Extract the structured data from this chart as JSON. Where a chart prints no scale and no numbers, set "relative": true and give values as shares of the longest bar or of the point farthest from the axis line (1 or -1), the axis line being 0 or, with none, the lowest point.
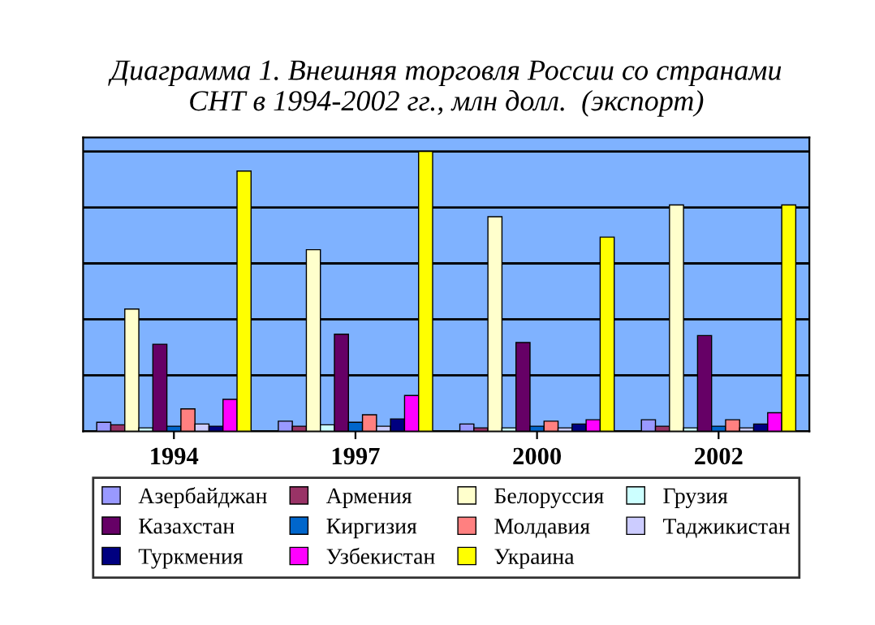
{
  "chart_data": {
    "type": "bar",
    "title": "Диаграмма 1. Внешняя торговля России со странами\nСНТ в 1994-2002 гг., млн долл.  (экспорт)",
    "relative": true,
    "grid": "y",
    "legend": "bottom",
    "categories": [
      "1994",
      "1997",
      "2000",
      "2002"
    ],
    "series": [
      {
        "name": "Азербайджан",
        "color": "#9999ff",
        "values": [
          0.032,
          0.036,
          0.026,
          0.041
        ]
      },
      {
        "name": "Армения",
        "color": "#993366",
        "values": [
          0.023,
          0.018,
          0.012,
          0.018
        ]
      },
      {
        "name": "Белоруссия",
        "color": "#ffffcc",
        "values": [
          0.437,
          0.649,
          0.767,
          0.809
        ]
      },
      {
        "name": "Грузия",
        "color": "#ccffff",
        "values": [
          0.012,
          0.023,
          0.012,
          0.012
        ]
      },
      {
        "name": "Казахстан",
        "color": "#660066",
        "values": [
          0.311,
          0.347,
          0.317,
          0.342
        ]
      },
      {
        "name": "Киргизия",
        "color": "#0066cc",
        "values": [
          0.018,
          0.032,
          0.018,
          0.018
        ]
      },
      {
        "name": "Молдавия",
        "color": "#ff8080",
        "values": [
          0.08,
          0.059,
          0.036,
          0.041
        ]
      },
      {
        "name": "Таджикистан",
        "color": "#ccccff",
        "values": [
          0.026,
          0.018,
          0.012,
          0.012
        ]
      },
      {
        "name": "Туркмения",
        "color": "#000080",
        "values": [
          0.018,
          0.044,
          0.026,
          0.026
        ]
      },
      {
        "name": "Узбекистан",
        "color": "#ff00ff",
        "values": [
          0.114,
          0.128,
          0.041,
          0.066
        ]
      },
      {
        "name": "Украина",
        "color": "#ffff00",
        "values": [
          0.93,
          1,
          0.694,
          0.809
        ]
      }
    ]
  }
}
